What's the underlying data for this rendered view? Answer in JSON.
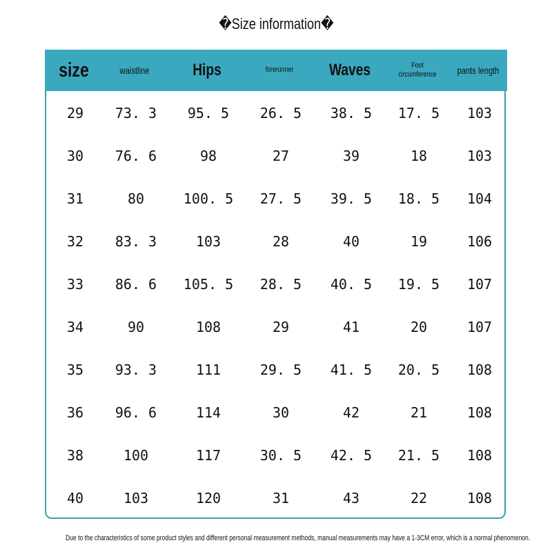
{
  "title": "�Size information�",
  "header_color": "#3aa8be",
  "columns": [
    "size",
    "waistline",
    "Hips",
    "forerunner",
    "Waves",
    "Foot circumference",
    "pants length"
  ],
  "rows": [
    [
      "29",
      "73. 3",
      "95. 5",
      "26. 5",
      "38. 5",
      "17. 5",
      "103"
    ],
    [
      "30",
      "76. 6",
      "98",
      "27",
      "39",
      "18",
      "103"
    ],
    [
      "31",
      "80",
      "100. 5",
      "27. 5",
      "39. 5",
      "18. 5",
      "104"
    ],
    [
      "32",
      "83. 3",
      "103",
      "28",
      "40",
      "19",
      "106"
    ],
    [
      "33",
      "86. 6",
      "105. 5",
      "28. 5",
      "40. 5",
      "19. 5",
      "107"
    ],
    [
      "34",
      "90",
      "108",
      "29",
      "41",
      "20",
      "107"
    ],
    [
      "35",
      "93. 3",
      "111",
      "29. 5",
      "41. 5",
      "20. 5",
      "108"
    ],
    [
      "36",
      "96. 6",
      "114",
      "30",
      "42",
      "21",
      "108"
    ],
    [
      "38",
      "100",
      "117",
      "30. 5",
      "42. 5",
      "21. 5",
      "108"
    ],
    [
      "40",
      "103",
      "120",
      "31",
      "43",
      "22",
      "108"
    ]
  ],
  "note": "Due to the characteristics of some product styles and different personal measurement methods, manual measurements may have a 1-3CM error, which is a normal phenomenon."
}
